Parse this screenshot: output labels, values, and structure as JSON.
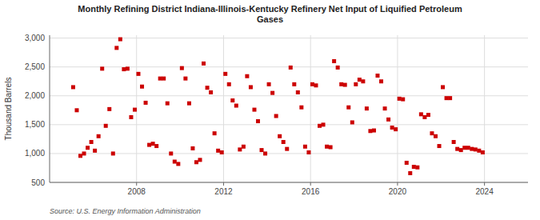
{
  "chart_data": {
    "type": "scatter",
    "title": "Monthly Refining District Indiana-Illinois-Kentucky Refinery Net Input of Liquified Petroleum\nGases",
    "ylabel": "Thousand Barrels",
    "annotations": [
      "Source: U.S. Energy Information Administration"
    ],
    "color": "#cc0000",
    "marker": "square",
    "grid": true,
    "xlim": [
      2004.0,
      2026.0
    ],
    "xticks": [
      2008,
      2012,
      2016,
      2020,
      2024
    ],
    "ylim": [
      500,
      3050
    ],
    "yticks": [
      500,
      {
        "value": 1000,
        "label": "1,000"
      },
      {
        "value": 1500,
        "label": "1,500"
      },
      {
        "value": 2000,
        "label": "2,000"
      },
      {
        "value": 2500,
        "label": "2,500"
      },
      {
        "value": 3000,
        "label": "3,000"
      }
    ],
    "x": [
      2005.083,
      2005.25,
      2005.417,
      2005.583,
      2005.75,
      2005.917,
      2006.083,
      2006.25,
      2006.417,
      2006.583,
      2006.75,
      2006.917,
      2007.083,
      2007.25,
      2007.417,
      2007.583,
      2007.75,
      2007.917,
      2008.083,
      2008.25,
      2008.417,
      2008.583,
      2008.75,
      2008.917,
      2009.083,
      2009.25,
      2009.417,
      2009.583,
      2009.75,
      2009.917,
      2010.083,
      2010.25,
      2010.417,
      2010.583,
      2010.75,
      2010.917,
      2011.083,
      2011.25,
      2011.417,
      2011.583,
      2011.75,
      2011.917,
      2012.083,
      2012.25,
      2012.417,
      2012.583,
      2012.75,
      2012.917,
      2013.083,
      2013.25,
      2013.417,
      2013.583,
      2013.75,
      2013.917,
      2014.083,
      2014.25,
      2014.417,
      2014.583,
      2014.75,
      2014.917,
      2015.083,
      2015.25,
      2015.417,
      2015.583,
      2015.75,
      2015.917,
      2016.083,
      2016.25,
      2016.417,
      2016.583,
      2016.75,
      2016.917,
      2017.083,
      2017.25,
      2017.417,
      2017.583,
      2017.75,
      2017.917,
      2018.083,
      2018.25,
      2018.417,
      2018.583,
      2018.75,
      2018.917,
      2019.083,
      2019.25,
      2019.417,
      2019.583,
      2019.75,
      2019.917,
      2020.083,
      2020.25,
      2020.417,
      2020.583,
      2020.75,
      2020.917,
      2021.083,
      2021.25,
      2021.417,
      2021.583,
      2021.75,
      2021.917,
      2022.083,
      2022.25,
      2022.417,
      2022.583,
      2022.75,
      2022.917,
      2023.083,
      2023.25,
      2023.417,
      2023.583,
      2023.75,
      2023.917
    ],
    "values": [
      2150,
      1750,
      960,
      1000,
      1100,
      1200,
      1050,
      1300,
      2470,
      1480,
      1770,
      1000,
      2830,
      2980,
      2460,
      2470,
      1630,
      1760,
      2380,
      2160,
      1880,
      1150,
      1170,
      1130,
      2300,
      2300,
      1870,
      1000,
      860,
      820,
      2480,
      2300,
      1870,
      1090,
      850,
      890,
      2560,
      2140,
      2060,
      1350,
      1050,
      1020,
      2380,
      2200,
      1920,
      1830,
      1070,
      1120,
      2340,
      2150,
      1760,
      1560,
      1060,
      1000,
      2200,
      2050,
      1650,
      1300,
      1200,
      1080,
      2490,
      2200,
      2060,
      1800,
      1120,
      1020,
      2200,
      2180,
      1480,
      1500,
      1120,
      1110,
      2600,
      2490,
      2200,
      2190,
      1800,
      1540,
      2200,
      2280,
      2250,
      1780,
      1390,
      1400,
      2350,
      2250,
      1780,
      1590,
      1450,
      1420,
      1950,
      1940,
      840,
      660,
      770,
      760,
      1680,
      1630,
      1670,
      1350,
      1300,
      1130,
      2150,
      1960,
      1960,
      1200,
      1080,
      1060,
      1100,
      1100,
      1080,
      1070,
      1050,
      1020
    ]
  }
}
